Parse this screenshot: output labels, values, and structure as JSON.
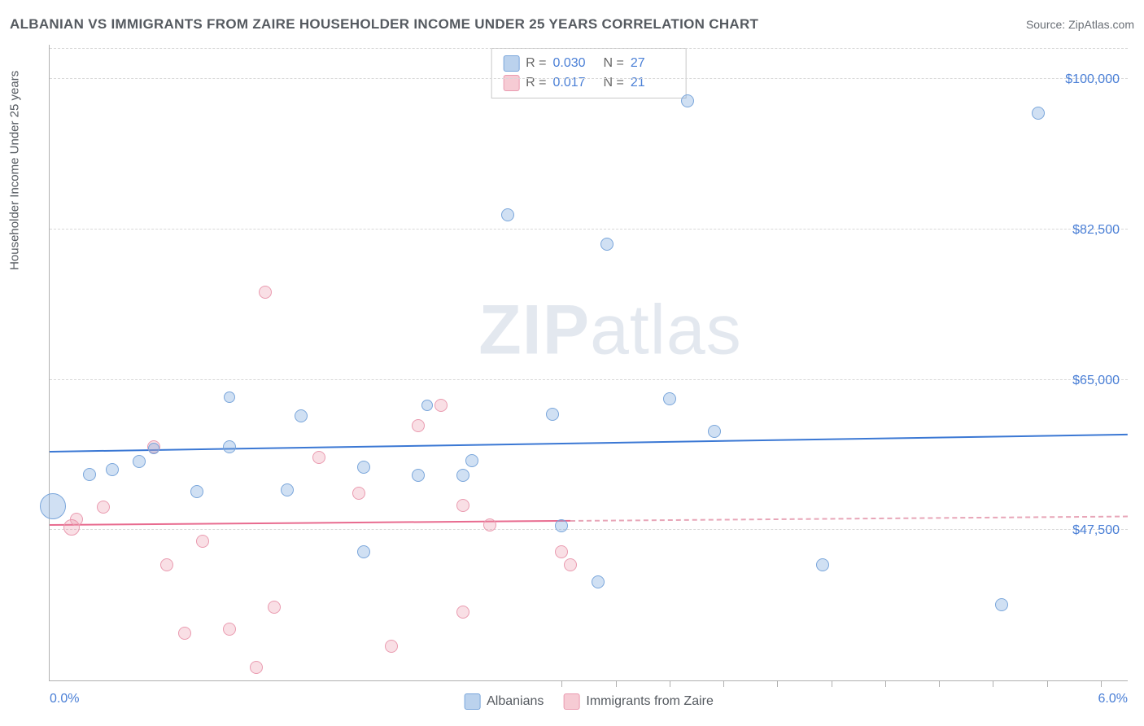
{
  "title": "ALBANIAN VS IMMIGRANTS FROM ZAIRE HOUSEHOLDER INCOME UNDER 25 YEARS CORRELATION CHART",
  "source": "Source: ZipAtlas.com",
  "watermark": "ZIPatlas",
  "y_axis_label": "Householder Income Under 25 years",
  "chart": {
    "type": "scatter",
    "x_range": [
      0.0,
      6.0
    ],
    "y_range": [
      30000,
      104000
    ],
    "y_ticks": [
      {
        "v": 47500,
        "label": "$47,500"
      },
      {
        "v": 65000,
        "label": "$65,000"
      },
      {
        "v": 82500,
        "label": "$82,500"
      },
      {
        "v": 100000,
        "label": "$100,000"
      }
    ],
    "y_grid_extra": [
      103500
    ],
    "x_tick_labels": [
      {
        "v": 0.0,
        "label": "0.0%"
      },
      {
        "v": 6.0,
        "label": "6.0%"
      }
    ],
    "x_ticks_minor": [
      2.85,
      3.15,
      3.45,
      3.75,
      4.05,
      4.35,
      4.65,
      4.95,
      5.25,
      5.55,
      5.85
    ],
    "background_color": "#ffffff",
    "grid_color": "#d8d8d8",
    "axis_color": "#b0b0b0",
    "series": [
      {
        "name": "Albanians",
        "color_fill": "rgba(120,165,220,0.35)",
        "color_stroke": "#7aa6db",
        "trend_color": "#3b78d4",
        "R": "0.030",
        "N": "27",
        "trend": {
          "y_start": 56500,
          "y_end": 58500
        },
        "points": [
          {
            "x": 0.02,
            "y": 50300,
            "r": 16
          },
          {
            "x": 0.22,
            "y": 54000,
            "r": 8
          },
          {
            "x": 0.35,
            "y": 54500,
            "r": 8
          },
          {
            "x": 0.5,
            "y": 55500,
            "r": 8
          },
          {
            "x": 0.58,
            "y": 57000,
            "r": 7
          },
          {
            "x": 0.82,
            "y": 52000,
            "r": 8
          },
          {
            "x": 1.0,
            "y": 63000,
            "r": 7
          },
          {
            "x": 1.0,
            "y": 57200,
            "r": 8
          },
          {
            "x": 1.32,
            "y": 52200,
            "r": 8
          },
          {
            "x": 1.4,
            "y": 60800,
            "r": 8
          },
          {
            "x": 1.75,
            "y": 54800,
            "r": 8
          },
          {
            "x": 1.75,
            "y": 45000,
            "r": 8
          },
          {
            "x": 2.05,
            "y": 53900,
            "r": 8
          },
          {
            "x": 2.1,
            "y": 62000,
            "r": 7
          },
          {
            "x": 2.3,
            "y": 53900,
            "r": 8
          },
          {
            "x": 2.35,
            "y": 55600,
            "r": 8
          },
          {
            "x": 2.55,
            "y": 84200,
            "r": 8
          },
          {
            "x": 2.8,
            "y": 61000,
            "r": 8
          },
          {
            "x": 2.85,
            "y": 48000,
            "r": 8
          },
          {
            "x": 3.05,
            "y": 41500,
            "r": 8
          },
          {
            "x": 3.1,
            "y": 80800,
            "r": 8
          },
          {
            "x": 3.45,
            "y": 62800,
            "r": 8
          },
          {
            "x": 3.55,
            "y": 97500,
            "r": 8
          },
          {
            "x": 3.7,
            "y": 59000,
            "r": 8
          },
          {
            "x": 4.3,
            "y": 43500,
            "r": 8
          },
          {
            "x": 5.3,
            "y": 38800,
            "r": 8
          },
          {
            "x": 5.5,
            "y": 96000,
            "r": 8
          }
        ]
      },
      {
        "name": "Immigrants from Zaire",
        "color_fill": "rgba(235,140,160,0.28)",
        "color_stroke": "#ea9bb0",
        "trend_color": "#e86b8f",
        "R": "0.017",
        "N": "21",
        "trend": {
          "y_start": 48000,
          "y_end": 49000
        },
        "points": [
          {
            "x": 0.12,
            "y": 47800,
            "r": 10
          },
          {
            "x": 0.15,
            "y": 48800,
            "r": 8
          },
          {
            "x": 0.3,
            "y": 50200,
            "r": 8
          },
          {
            "x": 0.58,
            "y": 57200,
            "r": 8
          },
          {
            "x": 0.65,
            "y": 43500,
            "r": 8
          },
          {
            "x": 0.75,
            "y": 35500,
            "r": 8
          },
          {
            "x": 0.85,
            "y": 46200,
            "r": 8
          },
          {
            "x": 1.0,
            "y": 36000,
            "r": 8
          },
          {
            "x": 1.15,
            "y": 31500,
            "r": 8
          },
          {
            "x": 1.2,
            "y": 75200,
            "r": 8
          },
          {
            "x": 1.25,
            "y": 38500,
            "r": 8
          },
          {
            "x": 1.5,
            "y": 56000,
            "r": 8
          },
          {
            "x": 1.72,
            "y": 51800,
            "r": 8
          },
          {
            "x": 1.9,
            "y": 34000,
            "r": 8
          },
          {
            "x": 2.05,
            "y": 59700,
            "r": 8
          },
          {
            "x": 2.18,
            "y": 62000,
            "r": 8
          },
          {
            "x": 2.3,
            "y": 50400,
            "r": 8
          },
          {
            "x": 2.3,
            "y": 38000,
            "r": 8
          },
          {
            "x": 2.45,
            "y": 48100,
            "r": 8
          },
          {
            "x": 2.85,
            "y": 45000,
            "r": 8
          },
          {
            "x": 2.9,
            "y": 43500,
            "r": 8
          }
        ]
      }
    ]
  },
  "legend_top": {
    "rows": [
      {
        "swatch": "blue",
        "r_label": "R =",
        "r_val": "0.030",
        "n_label": "N =",
        "n_val": "27"
      },
      {
        "swatch": "pink",
        "r_label": "R =",
        "r_val": "0.017",
        "n_label": "N =",
        "n_val": "21"
      }
    ]
  },
  "legend_bottom": {
    "items": [
      {
        "swatch": "blue",
        "label": "Albanians"
      },
      {
        "swatch": "pink",
        "label": "Immigrants from Zaire"
      }
    ]
  }
}
